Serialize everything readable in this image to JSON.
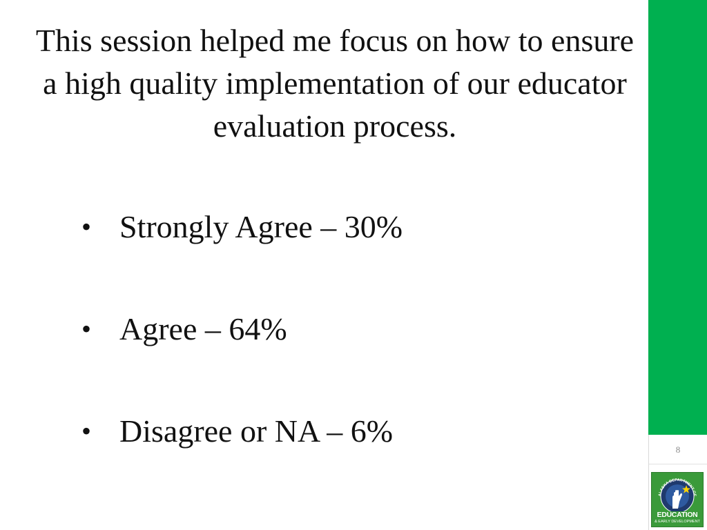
{
  "slide": {
    "title": "This session helped me focus on how to ensure a high quality implementation of our educator evaluation process.",
    "bullet_glyph": "•",
    "bullets": [
      {
        "label": "Strongly Agree – 30%"
      },
      {
        "label": "Agree – 64%"
      },
      {
        "label": "Disagree or NA – 6%"
      }
    ],
    "page_number": "8"
  },
  "logo": {
    "arc_text": "ALASKA DEPARTMENT OF",
    "line1": "EDUCATION",
    "line2": "& EARLY DEVELOPMENT"
  },
  "colors": {
    "accent_bar": "#00b050",
    "logo_green": "#3a9a3a",
    "logo_navy": "#1f3a6e",
    "text": "#111111"
  },
  "icons": {
    "logo_emblem": "hand-star-icon"
  }
}
